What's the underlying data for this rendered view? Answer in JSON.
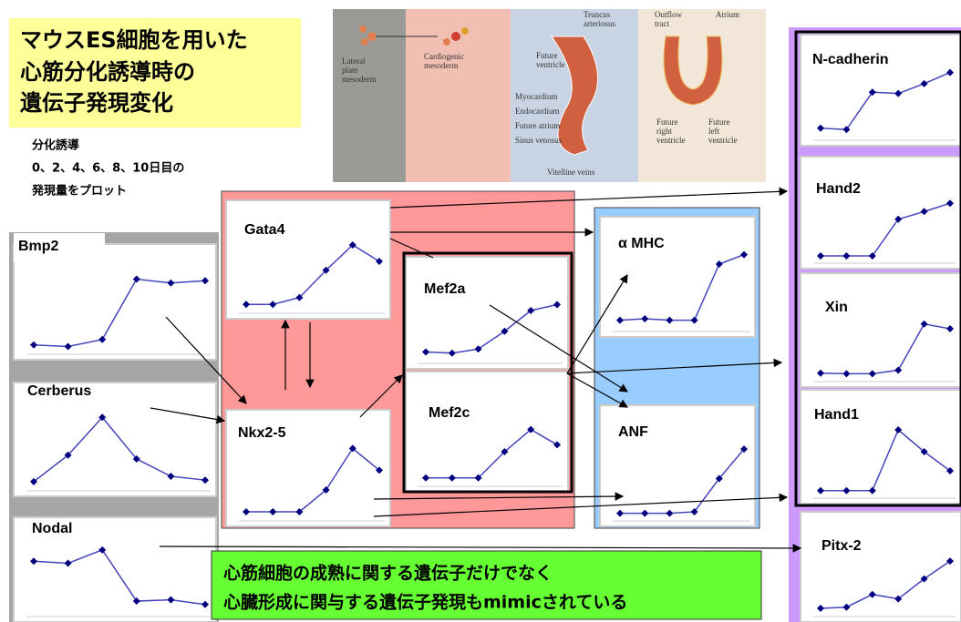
{
  "title": [
    "マウスES細胞を用いた",
    "心筋分化誘導時の",
    "遺伝子発現変化"
  ],
  "note": [
    "分化誘導",
    "0、2、4、6、8、10日目の",
    "発現量をプロット"
  ],
  "figure": [
    "Lateral",
    "plate",
    "mesoderm",
    "Cardiogenic",
    "mesoderm",
    "Truncus",
    "arteriosus",
    "Future",
    "ventricle",
    "Myocardium",
    "Endocardium",
    "Future atrium",
    "Sinus venosus",
    "Vitelline veins",
    "Outflow",
    "tract",
    "Atrium",
    "Future",
    "right",
    "ventricle",
    "Future",
    "left",
    "ventricle"
  ],
  "ylim": [
    0,
    100
  ],
  "charts": [
    {
      "label": "Bmp2",
      "values": [
        5,
        3,
        12,
        90,
        85,
        88
      ]
    },
    {
      "label": "Cerberus",
      "values": [
        5,
        40,
        90,
        35,
        12,
        7
      ]
    },
    {
      "label": "Nodal",
      "values": [
        75,
        72,
        92,
        15,
        17,
        10
      ]
    },
    {
      "label": "Gata4",
      "values": [
        5,
        5,
        15,
        55,
        92,
        68
      ]
    },
    {
      "label": "Nkx2-5",
      "values": [
        5,
        5,
        5,
        35,
        92,
        62
      ]
    },
    {
      "label": "Mef2a",
      "values": [
        10,
        8,
        15,
        45,
        80,
        90
      ]
    },
    {
      "label": "Mef2c",
      "values": [
        5,
        5,
        5,
        50,
        88,
        62
      ]
    },
    {
      "label": "α MHC",
      "values": [
        8,
        10,
        8,
        8,
        85,
        98
      ]
    },
    {
      "label": "ANF",
      "values": [
        3,
        3,
        3,
        5,
        50,
        90
      ]
    },
    {
      "label": "N-cadherin",
      "values": [
        10,
        8,
        65,
        63,
        78,
        95
      ]
    },
    {
      "label": "Hand2",
      "values": [
        3,
        3,
        3,
        65,
        78,
        92
      ]
    },
    {
      "label": "Xin",
      "values": [
        5,
        4,
        4,
        10,
        88,
        80
      ]
    },
    {
      "label": "Hand1",
      "values": [
        3,
        3,
        3,
        92,
        60,
        32
      ]
    },
    {
      "label": "Pitx-2",
      "values": [
        5,
        7,
        30,
        22,
        58,
        90
      ]
    }
  ],
  "footer": [
    "心筋細胞の成熟に関する遺伝子だけでなく",
    "心臓形成に関与する遺伝子発現もmimicされている"
  ]
}
